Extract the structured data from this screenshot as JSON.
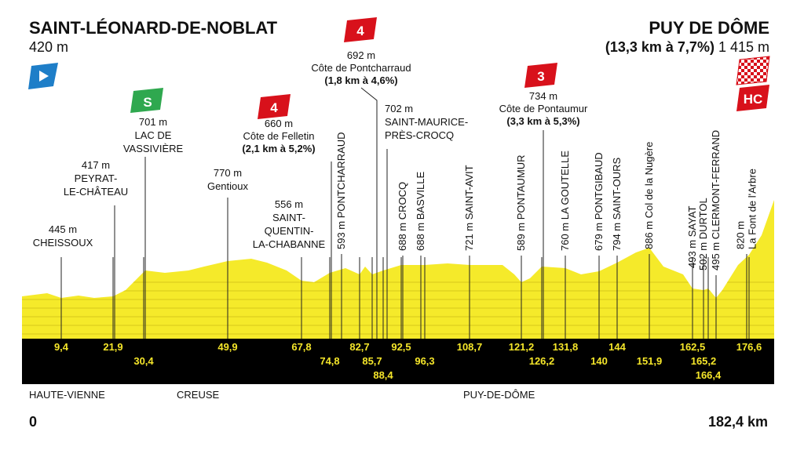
{
  "start": {
    "name": "SAINT-LÉONARD-DE-NOBLAT",
    "altitude": "420 m"
  },
  "finish": {
    "name": "PUY DE DÔME",
    "climb": "(13,3 km à 7,7%)",
    "altitude": "1 415 m",
    "category": "HC"
  },
  "climbs": [
    {
      "category": "4",
      "altitude": "660 m",
      "name": "Côte de Felletin",
      "detail": "(2,1 km à 5,2%)"
    },
    {
      "category": "4",
      "altitude": "692 m",
      "name": "Côte de Pontcharraud",
      "detail": "(1,8 km à 4,6%)"
    },
    {
      "category": "3",
      "altitude": "734 m",
      "name": "Côte de Pontaumur",
      "detail": "(3,3 km à 5,3%)"
    }
  ],
  "sprint": {
    "badge": "S",
    "altitude": "701 m",
    "lines": [
      "LAC DE",
      "VASSIVIÈRE"
    ]
  },
  "places": [
    {
      "altitude": "445 m",
      "lines": [
        "CHEISSOUX"
      ]
    },
    {
      "altitude": "417 m",
      "lines": [
        "PEYRAT-",
        "LE-CHÂTEAU"
      ]
    },
    {
      "altitude": "770 m",
      "lines": [
        "Gentioux"
      ]
    },
    {
      "altitude": "556 m",
      "lines": [
        "SAINT-",
        "QUENTIN-",
        "LA-CHABANNE"
      ]
    },
    {
      "altitude": "702 m",
      "lines": [
        "SAINT-MAURICE-",
        "PRÈS-CROCQ"
      ]
    }
  ],
  "vertical_places": [
    [
      "593 m PONTCHARRAUD"
    ],
    [
      "688 m CROCQ"
    ],
    [
      "688 m BASVILLE"
    ],
    [
      "721 m SAINT-AVIT"
    ],
    [
      "589 m PONTAUMUR"
    ],
    [
      "760 m LA GOUTELLE"
    ],
    [
      "679 m PONTGIBAUD"
    ],
    [
      "794 m SAINT-OURS"
    ],
    [
      "886 m Col de la Nugère"
    ],
    [
      "493 m SAYAT"
    ],
    [
      "502 m DURTOL"
    ],
    [
      "495 m CLERMONT-FERRAND"
    ],
    [
      "820 m",
      "La Font de l'Arbre"
    ]
  ],
  "km_marks": [
    "9,4",
    "21,9",
    "30,4",
    "49,9",
    "67,8",
    "74,8",
    "82,7",
    "85,7",
    "88,4",
    "92,5",
    "96,3",
    "108,7",
    "121,2",
    "126,2",
    "131,8",
    "140",
    "144",
    "151,9",
    "162,5",
    "165,2",
    "166,4",
    "176,6"
  ],
  "regions": [
    "HAUTE-VIENNE",
    "CREUSE",
    "PUY-DE-DÔME"
  ],
  "distance": {
    "start": "0",
    "end": "182,4 km"
  }
}
